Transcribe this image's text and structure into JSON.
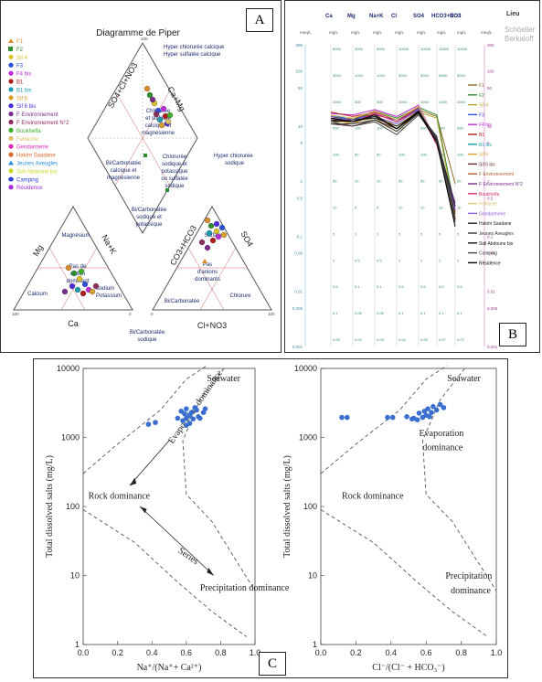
{
  "panel_labels": {
    "a": "A",
    "b": "B",
    "c": "C"
  },
  "piper": {
    "title": "Diagramme de Piper",
    "legend": [
      {
        "name": "F1",
        "color": "#d98c2b",
        "marker": "triangle"
      },
      {
        "name": "F2",
        "color": "#2e8b2e",
        "marker": "square"
      },
      {
        "name": "Sif 4",
        "color": "#d9c22b",
        "marker": "circle"
      },
      {
        "name": "F3",
        "color": "#2b4fd9",
        "marker": "circle"
      },
      {
        "name": "F4 bis",
        "color": "#c02bd9",
        "marker": "circle"
      },
      {
        "name": "B1",
        "color": "#b01c1c",
        "marker": "circle"
      },
      {
        "name": "B1 bis",
        "color": "#1c9bb0",
        "marker": "circle"
      },
      {
        "name": "Sif 6",
        "color": "#d9a02b",
        "marker": "circle"
      },
      {
        "name": "Sif 6 bis",
        "color": "#4b2bd9",
        "marker": "circle"
      },
      {
        "name": "F Environnement",
        "color": "#7a2b8c",
        "marker": "circle"
      },
      {
        "name": "F Environnement N°2",
        "color": "#8c2b5e",
        "marker": "circle"
      },
      {
        "name": "Boukhelfa",
        "color": "#3cb02b",
        "marker": "circle"
      },
      {
        "name": "Felliache",
        "color": "#d9c06a",
        "marker": "circle"
      },
      {
        "name": "Gendarmerie",
        "color": "#d92bb9",
        "marker": "circle"
      },
      {
        "name": "Hakim Saadane",
        "color": "#d96a2b",
        "marker": "circle"
      },
      {
        "name": "Jeunes Aveugles",
        "color": "#2b8cd9",
        "marker": "triangle"
      },
      {
        "name": "Sidi Abdoune bis",
        "color": "#c9d92b",
        "marker": "circle"
      },
      {
        "name": "Camping",
        "color": "#2b3cd9",
        "marker": "pentagon"
      },
      {
        "name": "Résidence",
        "color": "#a02bd9",
        "marker": "circle"
      }
    ],
    "axes": {
      "so4_cl_no3": "SO4+Cl+NO3",
      "ca_mg": "Ca+Mg",
      "mg": "Mg",
      "na_k": "Na+K",
      "ca": "Ca",
      "co3_hco3": "CO3+HCO3",
      "so4": "SO4",
      "cl_no3": "Cl+NO3"
    },
    "ticks": {
      "t100": "100",
      "t0": "0"
    },
    "zones": {
      "hyper_chl_ca": "Hyper chlorurée calcique",
      "hyper_sulf_ca": "Hyper sulfatée calcique",
      "chl_sulf_1": "Chlorurée",
      "chl_sulf_2": "et sulfatée",
      "chl_sulf_3": "calcique et",
      "chl_sulf_4": "magnésienne",
      "hyper_chl_na_1": "Hyper chlorurée",
      "hyper_chl_na_2": "sodique",
      "bicarb_ca_1": "Bi/Carbonatée",
      "bicarb_ca_2": "calcique et",
      "bicarb_ca_3": "magnésienne",
      "chl_na_1": "Chlorurée",
      "chl_na_2": "sodique et",
      "chl_na_3": "potassique",
      "chl_na_4": "ou sulfatée",
      "chl_na_5": "sodique",
      "bicarb_na_1": "Bi/Carbonatée",
      "bicarb_na_2": "sodique et",
      "bicarb_na_3": "potassique",
      "bicarb_sodique_1": "Bi/Carbonatée",
      "bicarb_sodique_2": "sodique",
      "magnesium": "Magnésium",
      "pas_cation_1": "Pas de",
      "pas_cation_2": "cation",
      "pas_cation_3": "dominant",
      "calcium": "Calcium",
      "sodium_1": "Sodium",
      "sodium_2": "Potassium",
      "pas_anion_1": "Pas",
      "pas_anion_2": "d'anions",
      "pas_anion_3": "dominants",
      "sulfate": "Sulfate",
      "chlorure": "Chlorure",
      "bicarbonatee": "Bi/Carbonatée"
    }
  },
  "schoeller": {
    "legend_title": "Lieu",
    "title_1": "Schöeller",
    "title_2": "Berkaloff",
    "columns": [
      "Ca",
      "Mg",
      "Na+K",
      "Cl",
      "SO4",
      "HCO3+CO3",
      "NO3"
    ],
    "units": [
      "meq/L",
      "mg/L",
      "mg/L",
      "mg/L",
      "mg/L",
      "mg/L",
      "mg/L",
      "mg/L",
      "meq/L"
    ],
    "left_ticks": [
      "300",
      "100",
      "50",
      "10",
      "5",
      "1",
      "0.5",
      "0.1",
      "0.05",
      "0.01",
      "0.005",
      "0.001"
    ],
    "right_ticks": [
      "300",
      "100",
      "50",
      "10",
      "5",
      "1",
      "0.5",
      "0.1",
      "0.05",
      "0.01",
      "0.005",
      "0.001"
    ],
    "col_ticks": [
      [
        "6000",
        "3000",
        "1000",
        "500",
        "100",
        "50",
        "10",
        "5",
        "1",
        "0.5",
        "0.1",
        "0.05"
      ],
      [
        "3000",
        "1000",
        "500",
        "100",
        "50",
        "10",
        "5",
        "1",
        "0.5",
        "0.1",
        "0.05",
        "0.02"
      ],
      [
        "5000",
        "1000",
        "500",
        "100",
        "50",
        "10",
        "5",
        "1",
        "0.5",
        "0.1",
        "0.05",
        "0.03"
      ],
      [
        "10000",
        "5000",
        "1000",
        "500",
        "100",
        "50",
        "10",
        "5",
        "1",
        "0.5",
        "0.1",
        "0.04"
      ],
      [
        "10000",
        "5000",
        "1000",
        "500",
        "100",
        "50",
        "10",
        "5",
        "1",
        "0.5",
        "0.1",
        "0.05"
      ],
      [
        "10000",
        "5000",
        "1000",
        "500",
        "100",
        "50",
        "10",
        "5",
        "1",
        "0.5",
        "0.1",
        "0.07"
      ],
      [
        "10000",
        "5000",
        "1000",
        "500",
        "100",
        "50",
        "10",
        "5",
        "1",
        "0.5",
        "0.1",
        "0.07"
      ]
    ],
    "series": [
      {
        "name": "F1",
        "color": "#8c6a2b",
        "values": [
          13,
          14,
          16,
          9,
          20,
          15,
          0.9
        ]
      },
      {
        "name": "F2",
        "color": "#2e8b2e",
        "values": [
          15,
          13,
          19,
          14,
          22,
          16,
          0.3
        ]
      },
      {
        "name": "Sif 4",
        "color": "#b0a02b",
        "values": [
          12,
          12,
          14,
          8,
          18,
          14,
          0.25
        ]
      },
      {
        "name": "F3",
        "color": "#2b4fd9",
        "values": [
          16,
          13,
          17,
          12,
          21,
          5,
          0.35
        ]
      },
      {
        "name": "F4 bis",
        "color": "#c02bd9",
        "values": [
          17,
          16,
          20,
          15,
          24,
          5,
          0.3
        ]
      },
      {
        "name": "B1",
        "color": "#b01c1c",
        "values": [
          18,
          15,
          18,
          13,
          22,
          5,
          0.28
        ]
      },
      {
        "name": "B1 bis",
        "color": "#1c9bb0",
        "values": [
          14,
          12,
          15,
          11,
          20,
          5,
          0.3
        ]
      },
      {
        "name": "Sif 6",
        "color": "#d9a02b",
        "values": [
          13,
          11,
          16,
          10,
          19,
          5,
          0.22
        ]
      },
      {
        "name": "Sif 6 bis",
        "color": "#5e2b2b",
        "values": [
          11,
          10,
          13,
          9,
          17,
          5,
          0.2
        ]
      },
      {
        "name": "F Environnement",
        "color": "#b05e2b",
        "values": [
          12,
          14,
          17,
          12,
          22,
          5,
          0.28
        ]
      },
      {
        "name": "F Environnement N°2",
        "color": "#7a2b8c",
        "values": [
          15,
          12,
          16,
          13,
          19,
          5,
          0.4
        ]
      },
      {
        "name": "Boukhelfa",
        "color": "#d92b6a",
        "values": [
          13,
          12,
          17,
          12,
          20,
          4.5,
          0.3
        ]
      },
      {
        "name": "Felliache",
        "color": "#d9c06a",
        "values": [
          16,
          14,
          19,
          13,
          23,
          4.8,
          0.25
        ]
      },
      {
        "name": "Gendarmerie",
        "color": "#8c5ed9",
        "values": [
          14,
          13,
          15,
          11,
          20,
          5.2,
          0.3
        ]
      },
      {
        "name": "Hakim Saadane",
        "color": "#222222",
        "values": [
          12,
          13,
          14,
          10,
          18,
          6,
          0.35
        ]
      },
      {
        "name": "Jeunes Aveugles",
        "color": "#333333",
        "values": [
          11,
          11,
          13,
          8,
          17,
          6.5,
          0.25
        ]
      },
      {
        "name": "Sidi Abdoune bis",
        "color": "#111111",
        "values": [
          13,
          12,
          15,
          9,
          19,
          5.5,
          0.2
        ]
      },
      {
        "name": "Camping",
        "color": "#444444",
        "values": [
          12,
          10,
          12,
          7,
          16,
          6,
          0.18
        ]
      },
      {
        "name": "Résidence",
        "color": "#000000",
        "values": [
          14,
          12,
          16,
          9,
          18,
          5,
          0.15
        ]
      }
    ]
  },
  "chart_data": [
    {
      "type": "scatter",
      "xlabel": "Na⁺/(Na⁺+ Ca²⁺)",
      "ylabel": "Total dissolved salts (mg/L)",
      "xlim": [
        0,
        1
      ],
      "ylim": [
        1,
        10000
      ],
      "yscale": "log",
      "xticks": [
        "0.0",
        "0.2",
        "0.4",
        "0.6",
        "0.8",
        "1.0"
      ],
      "yticks": [
        "1",
        "10",
        "100",
        "1000",
        "10000"
      ],
      "annotations": [
        "Seawater",
        "Evaporation dominance",
        "Rock dominance",
        "Series",
        "Precipitation dominance"
      ],
      "points": [
        [
          0.38,
          1550
        ],
        [
          0.42,
          1650
        ],
        [
          0.58,
          1750
        ],
        [
          0.6,
          1900
        ],
        [
          0.62,
          2100
        ],
        [
          0.64,
          1850
        ],
        [
          0.57,
          2400
        ],
        [
          0.6,
          2600
        ],
        [
          0.63,
          2300
        ],
        [
          0.65,
          2700
        ],
        [
          0.67,
          2000
        ],
        [
          0.7,
          2300
        ],
        [
          0.62,
          1600
        ],
        [
          0.68,
          1900
        ],
        [
          0.6,
          1500
        ],
        [
          0.66,
          2500
        ],
        [
          0.59,
          2200
        ],
        [
          0.71,
          2600
        ],
        [
          0.55,
          1900
        ]
      ]
    },
    {
      "type": "scatter",
      "xlabel": "Cl⁻/(Cl⁻ + HCO₃⁻)",
      "ylabel": "Total dissolved salts (mg/L)",
      "xlim": [
        0,
        1
      ],
      "ylim": [
        1,
        10000
      ],
      "yscale": "log",
      "xticks": [
        "0.0",
        "0.2",
        "0.4",
        "0.6",
        "0.8",
        "1.0"
      ],
      "yticks": [
        "1",
        "10",
        "100",
        "1000",
        "10000"
      ],
      "annotations": [
        "Seawater",
        "Evaporation dominance",
        "Rock dominance",
        "Precipitation dominance"
      ],
      "points": [
        [
          0.12,
          1950
        ],
        [
          0.15,
          1950
        ],
        [
          0.38,
          1950
        ],
        [
          0.41,
          1950
        ],
        [
          0.49,
          2000
        ],
        [
          0.52,
          1850
        ],
        [
          0.55,
          1800
        ],
        [
          0.56,
          2250
        ],
        [
          0.58,
          1950
        ],
        [
          0.6,
          2100
        ],
        [
          0.61,
          2600
        ],
        [
          0.63,
          2300
        ],
        [
          0.64,
          2800
        ],
        [
          0.66,
          2500
        ],
        [
          0.68,
          3000
        ],
        [
          0.7,
          2700
        ],
        [
          0.62,
          2000
        ],
        [
          0.59,
          2400
        ],
        [
          0.53,
          1900
        ]
      ]
    }
  ]
}
